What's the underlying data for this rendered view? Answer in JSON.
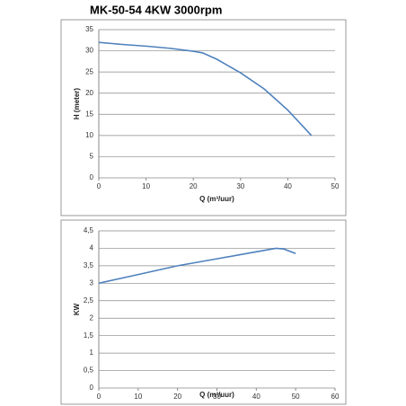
{
  "chart_data": [
    {
      "type": "line",
      "title": "MK-50-54  4KW 3000rpm",
      "x_label": "Q (m³/uur)",
      "y_label": "H (meter)",
      "x": [
        0,
        5,
        10,
        15,
        20,
        22,
        25,
        30,
        35,
        40,
        45
      ],
      "values": [
        32,
        31.5,
        31.1,
        30.6,
        29.9,
        29.5,
        28,
        24.8,
        21,
        16,
        10
      ],
      "color": "#4f81bd",
      "xlim": [
        0,
        50
      ],
      "xticks": [
        0,
        10,
        20,
        30,
        40,
        50
      ],
      "ylim": [
        0,
        35
      ],
      "yticks": [
        0,
        5,
        10,
        15,
        20,
        25,
        30,
        35
      ],
      "grid": true
    },
    {
      "type": "line",
      "x_label": "Q (m³/uur)",
      "y_label": "KW",
      "x": [
        0,
        10,
        20,
        30,
        40,
        45,
        47,
        50
      ],
      "values": [
        3.0,
        3.25,
        3.5,
        3.7,
        3.9,
        4.0,
        3.98,
        3.85
      ],
      "color": "#4f81bd",
      "xlim": [
        0,
        60
      ],
      "xticks": [
        0,
        10,
        20,
        30,
        40,
        50,
        60
      ],
      "ylim": [
        0,
        4.5
      ],
      "yticks": [
        0,
        {
          "value": 0.5,
          "label": "0,5"
        },
        1,
        {
          "value": 1.5,
          "label": "1,5"
        },
        2,
        {
          "value": 2.5,
          "label": "2,5"
        },
        3,
        {
          "value": 3.5,
          "label": "3,5"
        },
        4,
        {
          "value": 4.5,
          "label": "4,5"
        }
      ],
      "grid": true
    }
  ]
}
